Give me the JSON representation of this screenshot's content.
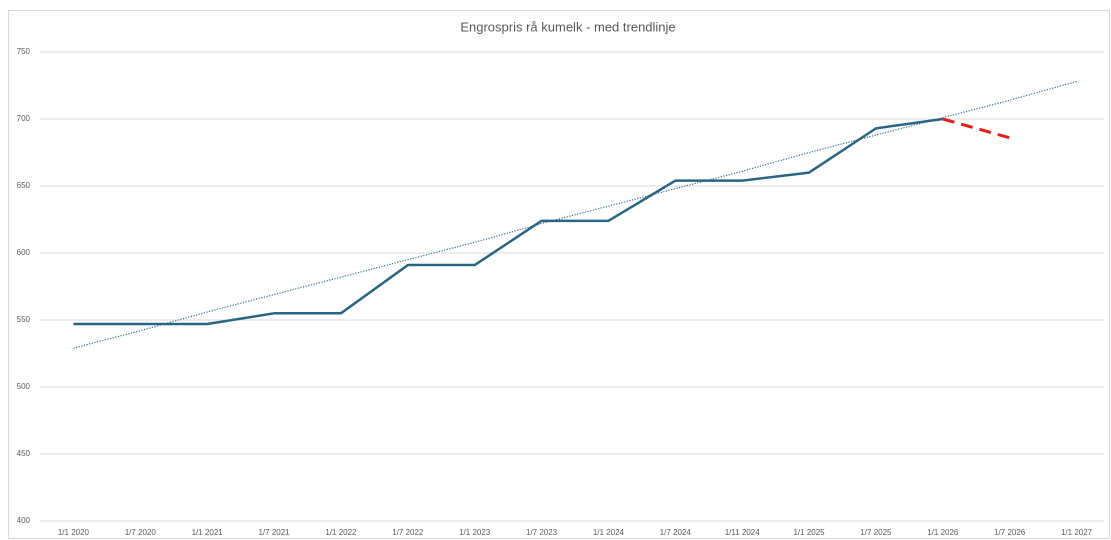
{
  "chart_data": {
    "type": "line",
    "title": "Engrospris rå kumelk - med trendlinje",
    "categories": [
      "1/1 2020",
      "1/7 2020",
      "1/1 2021",
      "1/7 2021",
      "1/1 2022",
      "1/7 2022",
      "1/1 2023",
      "1/7 2023",
      "1/1 2024",
      "1/7 2024",
      "1/11 2024",
      "1/1 2025",
      "1/7 2025",
      "1/1 2026",
      "1/7 2026",
      "1/1 2027"
    ],
    "series": [
      {
        "color": "#2f6b87",
        "dash": "dotted",
        "values": [
          529,
          542,
          556,
          569,
          582,
          595,
          608,
          622,
          635,
          648,
          661,
          675,
          688,
          701,
          714,
          728
        ]
      },
      {
        "color": "#2a6582",
        "dash": "solid",
        "values": [
          547,
          547,
          547,
          555,
          555,
          591,
          591,
          624,
          624,
          654,
          654,
          660,
          693,
          700,
          null,
          null
        ]
      },
      {
        "color": "#e8201c",
        "dash": "dashed",
        "values": [
          null,
          null,
          null,
          null,
          null,
          null,
          null,
          null,
          null,
          null,
          null,
          null,
          null,
          700,
          686,
          null
        ]
      }
    ],
    "ylim": [
      400,
      750
    ],
    "yticks": [
      400,
      450,
      500,
      550,
      600,
      650,
      700,
      750
    ],
    "grid": true
  }
}
